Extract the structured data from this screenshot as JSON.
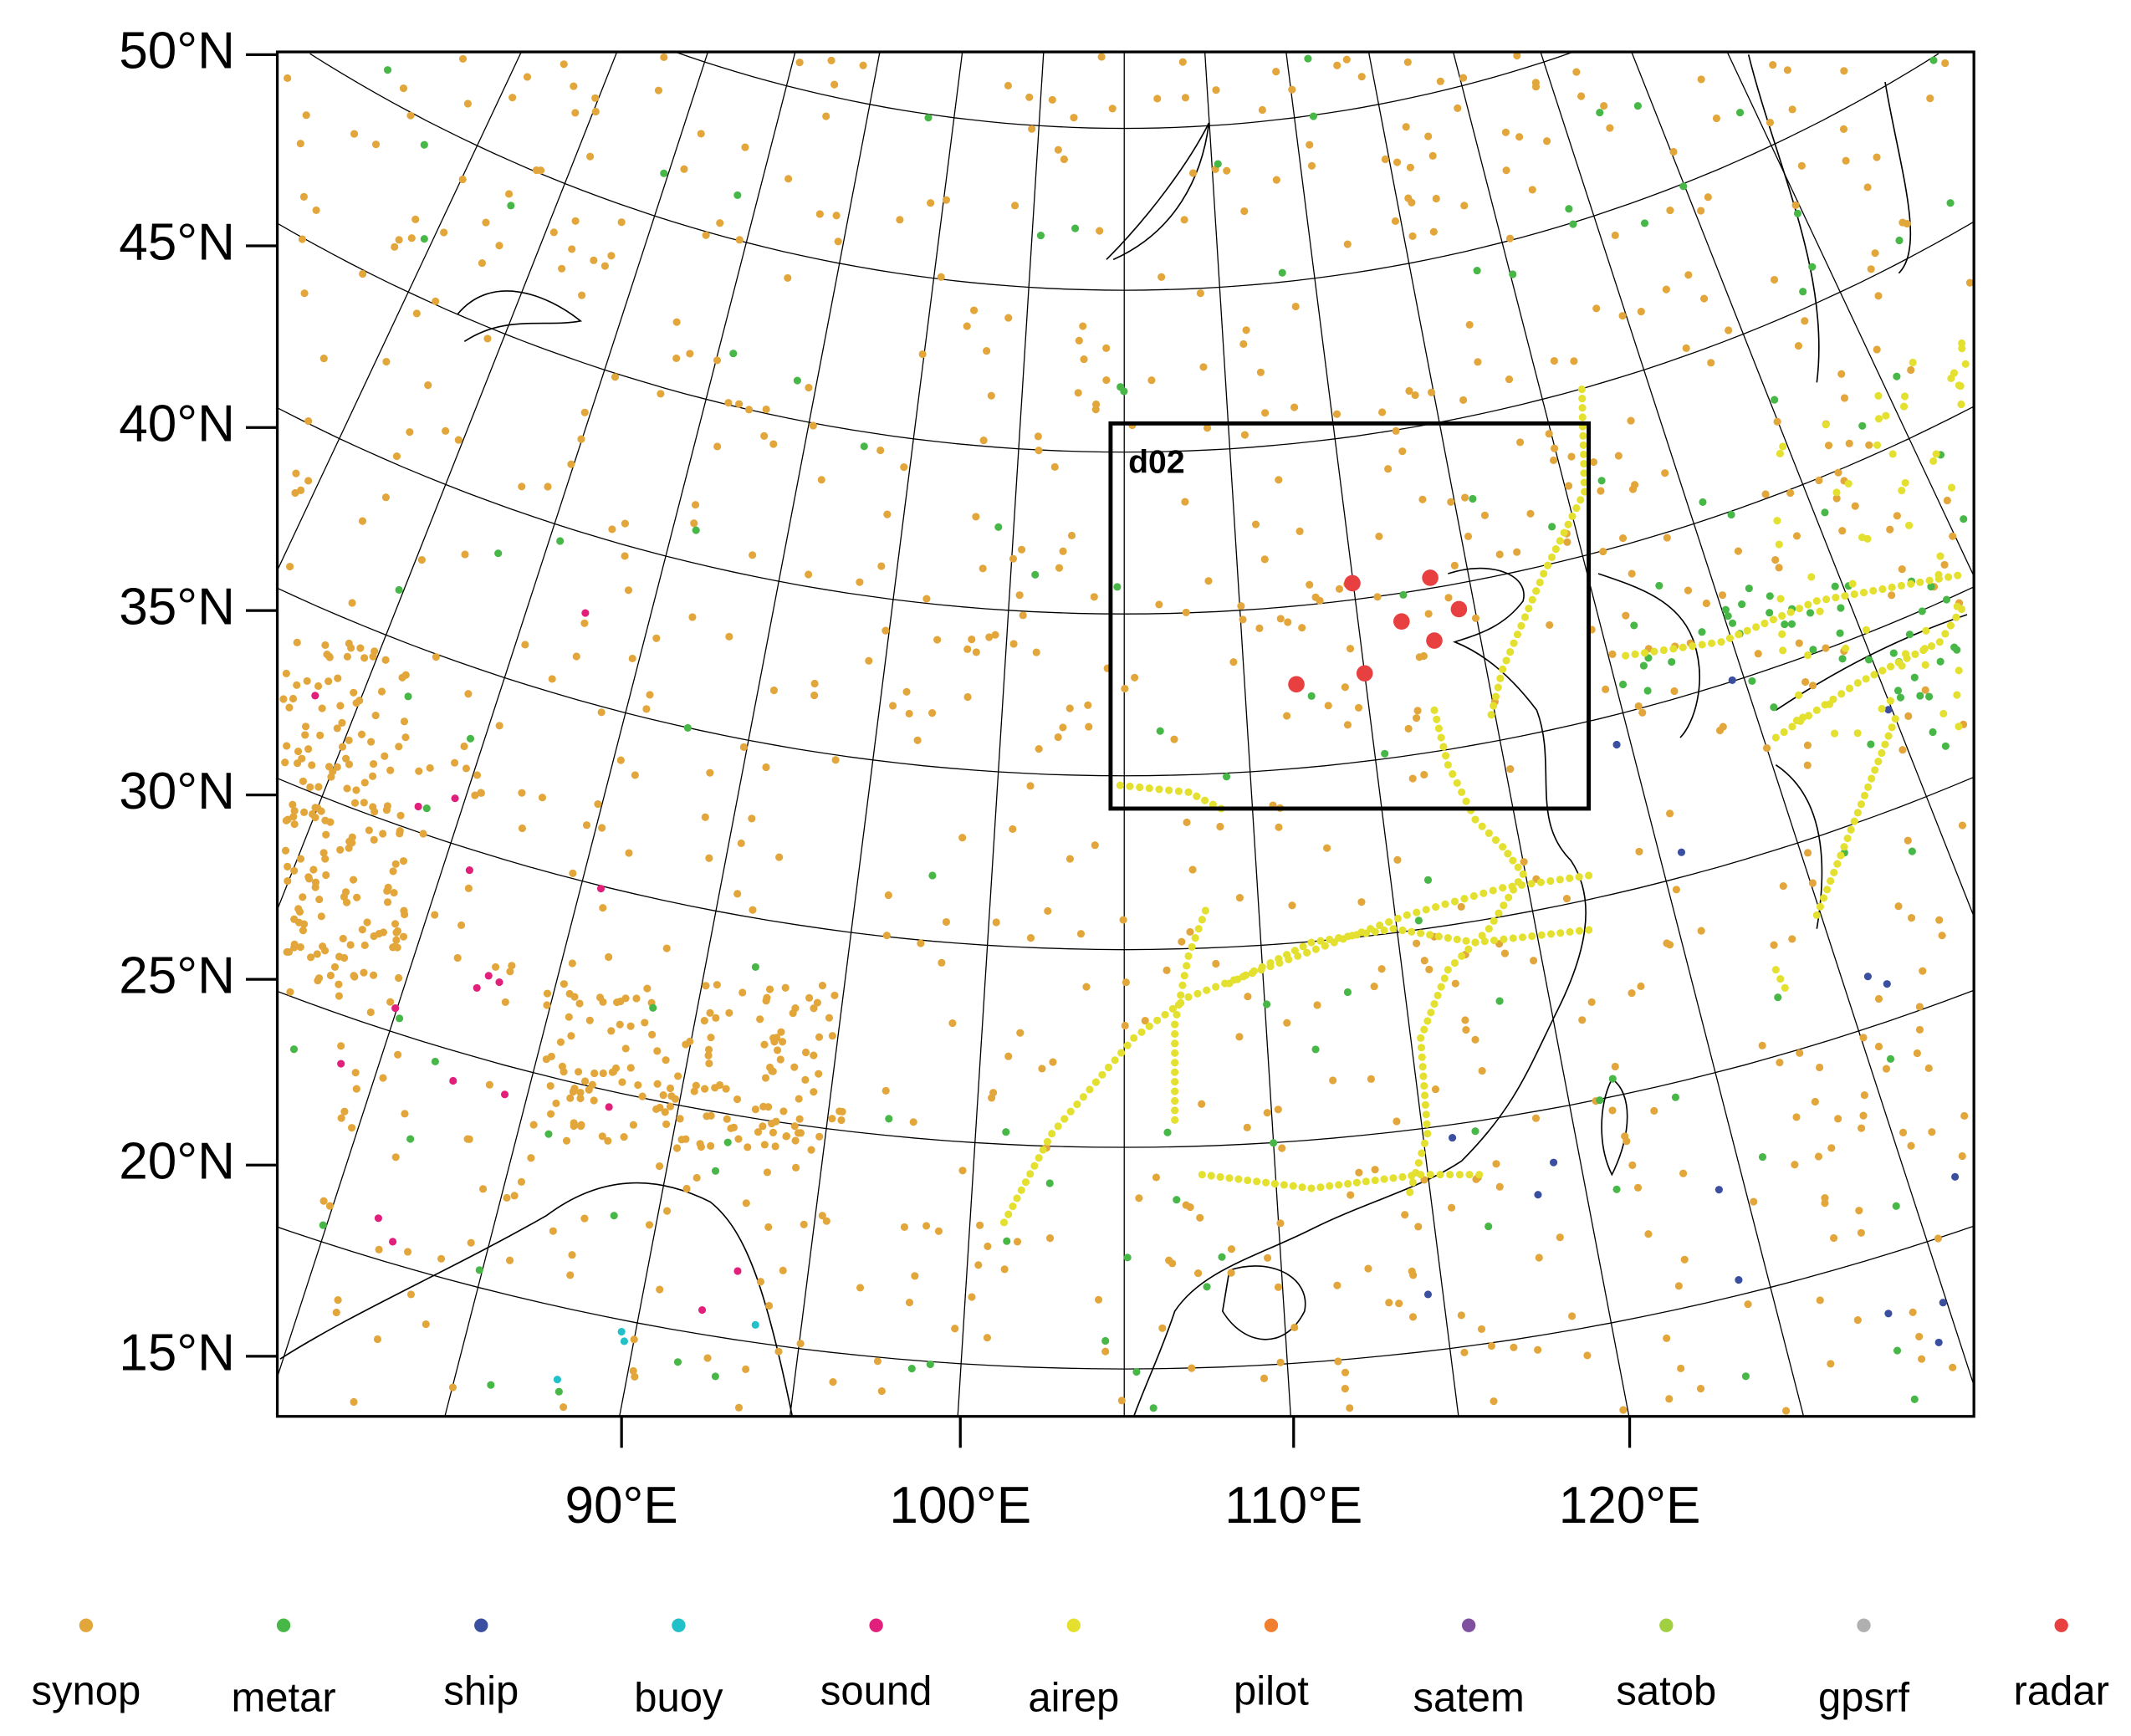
{
  "map": {
    "lat_labels": [
      "50°N",
      "45°N",
      "40°N",
      "35°N",
      "30°N",
      "25°N",
      "20°N",
      "15°N"
    ],
    "lon_labels": [
      "90°E",
      "100°E",
      "110°E",
      "120°E"
    ],
    "domain_label": "d02",
    "legend": [
      {
        "name": "synop",
        "color": "#e2a63a"
      },
      {
        "name": "metar",
        "color": "#47b847"
      },
      {
        "name": "ship",
        "color": "#3a4fa0"
      },
      {
        "name": "buoy",
        "color": "#22c0c8"
      },
      {
        "name": "sound",
        "color": "#e0207a"
      },
      {
        "name": "airep",
        "color": "#e4e030"
      },
      {
        "name": "pilot",
        "color": "#f08030"
      },
      {
        "name": "satem",
        "color": "#8050a0"
      },
      {
        "name": "satob",
        "color": "#a0d040"
      },
      {
        "name": "gpsrf",
        "color": "#b0b0b0"
      },
      {
        "name": "radar",
        "color": "#e84040"
      }
    ]
  }
}
